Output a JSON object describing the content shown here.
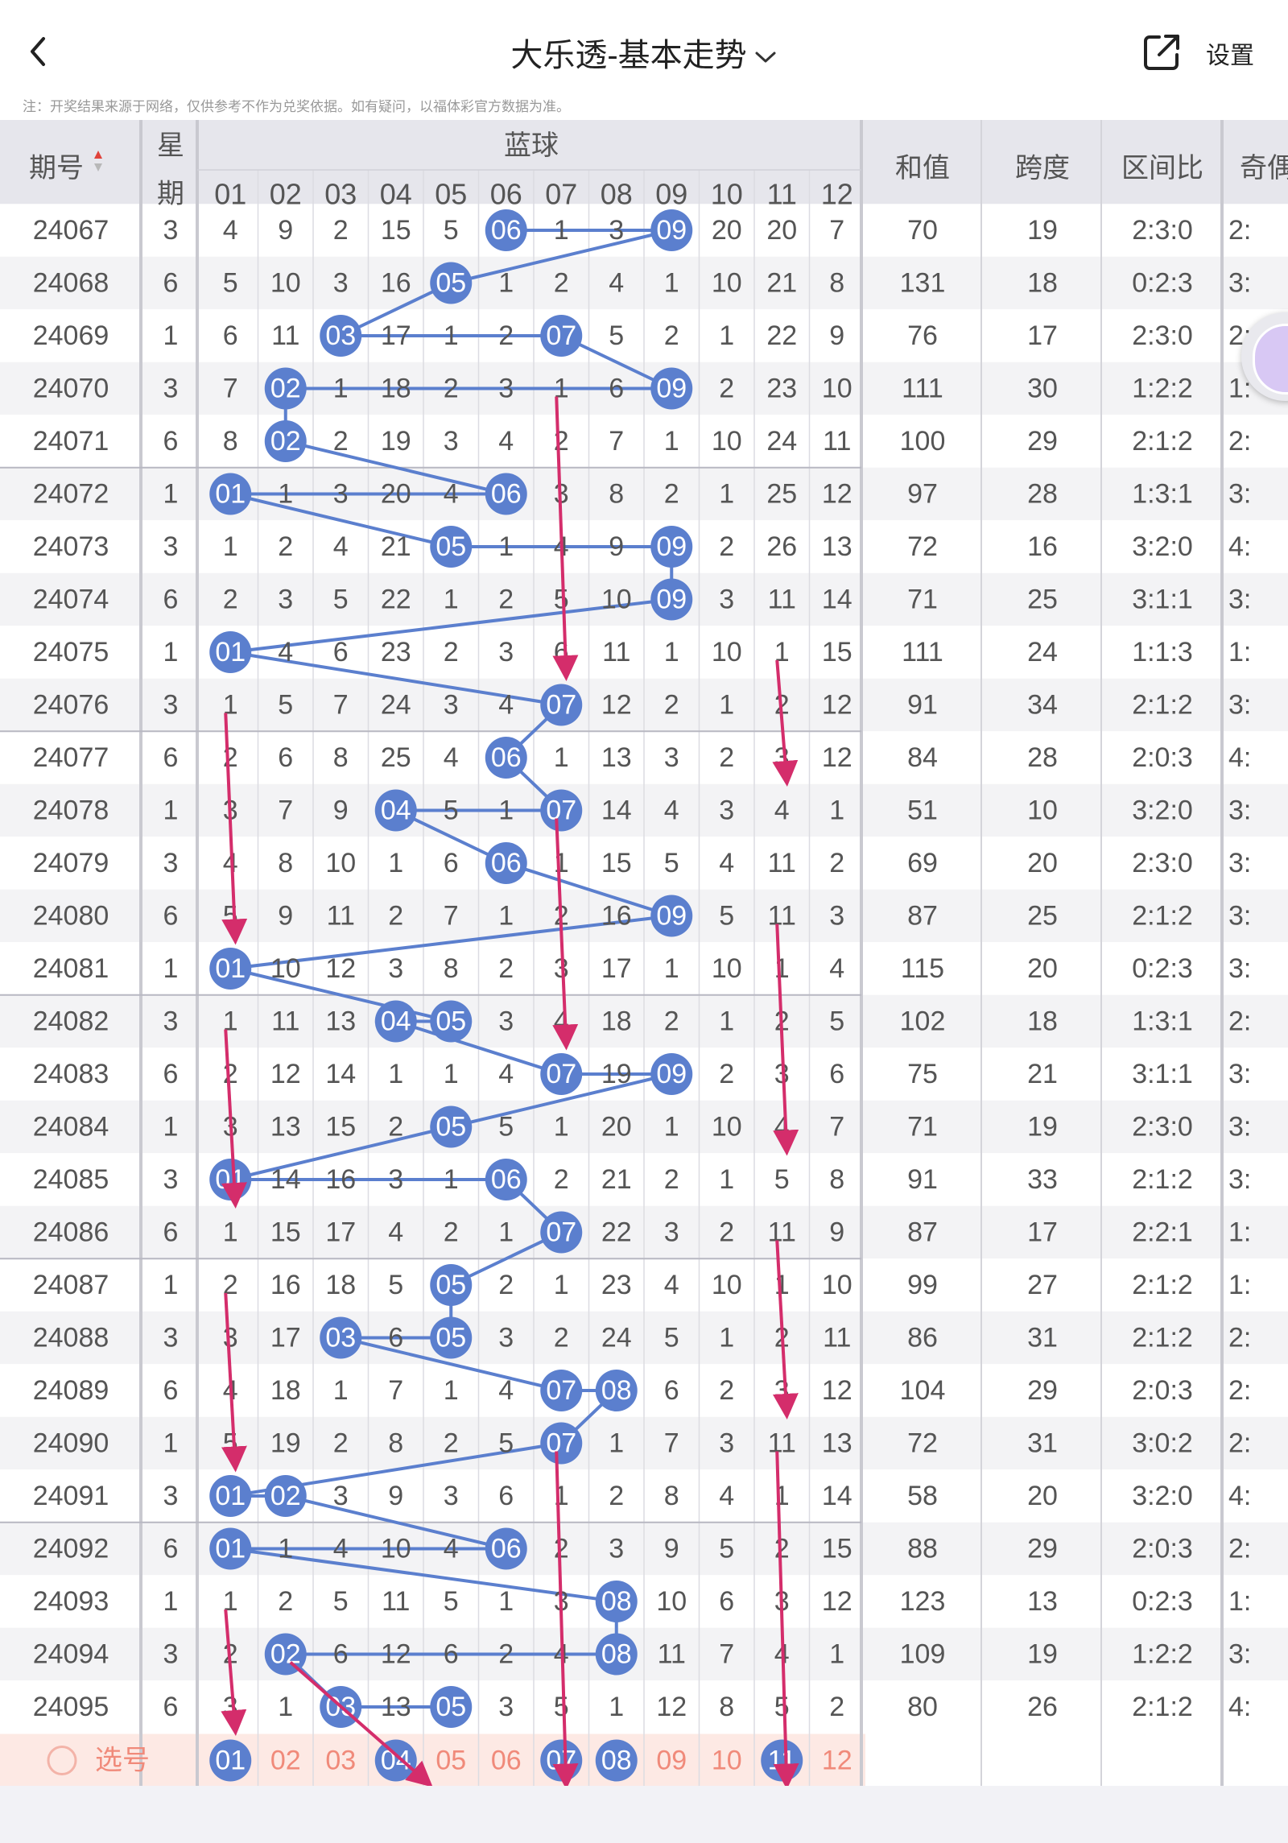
{
  "header": {
    "title": "大乐透-基本走势",
    "settings_label": "设置"
  },
  "notice": "注：开奖结果来源于网络，仅供参考不作为兑奖依据。如有疑问，以福体彩官方数据为准。",
  "table": {
    "col_issue": "期号",
    "col_week_1": "星",
    "col_week_2": "期",
    "group_blue": "蓝球",
    "blue_numbers": [
      "01",
      "02",
      "03",
      "04",
      "05",
      "06",
      "07",
      "08",
      "09",
      "10",
      "11",
      "12"
    ],
    "col_sum": "和值",
    "col_span": "跨度",
    "col_zone": "区间比",
    "col_odd": "奇偶",
    "rows": [
      {
        "issue": "24067",
        "week": "3",
        "cells": [
          "4",
          "9",
          "2",
          "15",
          "5",
          "06",
          "1",
          "3",
          "09",
          "20",
          "20",
          "7"
        ],
        "sum": "70",
        "span": "19",
        "zone": "2:3:0",
        "odd": "2:"
      },
      {
        "issue": "24068",
        "week": "6",
        "cells": [
          "5",
          "10",
          "3",
          "16",
          "05",
          "1",
          "2",
          "4",
          "1",
          "10",
          "21",
          "8"
        ],
        "sum": "131",
        "span": "18",
        "zone": "0:2:3",
        "odd": "3:"
      },
      {
        "issue": "24069",
        "week": "1",
        "cells": [
          "6",
          "11",
          "03",
          "17",
          "1",
          "2",
          "07",
          "5",
          "2",
          "1",
          "22",
          "9"
        ],
        "sum": "76",
        "span": "17",
        "zone": "2:3:0",
        "odd": "2:"
      },
      {
        "issue": "24070",
        "week": "3",
        "cells": [
          "7",
          "02",
          "1",
          "18",
          "2",
          "3",
          "1",
          "6",
          "09",
          "2",
          "23",
          "10"
        ],
        "sum": "111",
        "span": "30",
        "zone": "1:2:2",
        "odd": "1:"
      },
      {
        "issue": "24071",
        "week": "6",
        "cells": [
          "8",
          "02",
          "2",
          "19",
          "3",
          "4",
          "2",
          "7",
          "1",
          "10",
          "24",
          "11"
        ],
        "sum": "100",
        "span": "29",
        "zone": "2:1:2",
        "odd": "2:"
      },
      {
        "issue": "24072",
        "week": "1",
        "cells": [
          "01",
          "1",
          "3",
          "20",
          "4",
          "06",
          "3",
          "8",
          "2",
          "1",
          "25",
          "12"
        ],
        "sum": "97",
        "span": "28",
        "zone": "1:3:1",
        "odd": "3:"
      },
      {
        "issue": "24073",
        "week": "3",
        "cells": [
          "1",
          "2",
          "4",
          "21",
          "05",
          "1",
          "4",
          "9",
          "09",
          "2",
          "26",
          "13"
        ],
        "sum": "72",
        "span": "16",
        "zone": "3:2:0",
        "odd": "4:"
      },
      {
        "issue": "24074",
        "week": "6",
        "cells": [
          "2",
          "3",
          "5",
          "22",
          "1",
          "2",
          "5",
          "10",
          "09",
          "3",
          "11",
          "14"
        ],
        "sum": "71",
        "span": "25",
        "zone": "3:1:1",
        "odd": "3:"
      },
      {
        "issue": "24075",
        "week": "1",
        "cells": [
          "01",
          "4",
          "6",
          "23",
          "2",
          "3",
          "6",
          "11",
          "1",
          "10",
          "1",
          "15"
        ],
        "sum": "111",
        "span": "24",
        "zone": "1:1:3",
        "odd": "1:"
      },
      {
        "issue": "24076",
        "week": "3",
        "cells": [
          "1",
          "5",
          "7",
          "24",
          "3",
          "4",
          "07",
          "12",
          "2",
          "1",
          "2",
          "12"
        ],
        "sum": "91",
        "span": "34",
        "zone": "2:1:2",
        "odd": "3:"
      },
      {
        "issue": "24077",
        "week": "6",
        "cells": [
          "2",
          "6",
          "8",
          "25",
          "4",
          "06",
          "1",
          "13",
          "3",
          "2",
          "3",
          "12"
        ],
        "sum": "84",
        "span": "28",
        "zone": "2:0:3",
        "odd": "4:"
      },
      {
        "issue": "24078",
        "week": "1",
        "cells": [
          "3",
          "7",
          "9",
          "04",
          "5",
          "1",
          "07",
          "14",
          "4",
          "3",
          "4",
          "1"
        ],
        "sum": "51",
        "span": "10",
        "zone": "3:2:0",
        "odd": "3:"
      },
      {
        "issue": "24079",
        "week": "3",
        "cells": [
          "4",
          "8",
          "10",
          "1",
          "6",
          "06",
          "1",
          "15",
          "5",
          "4",
          "11",
          "2"
        ],
        "sum": "69",
        "span": "20",
        "zone": "2:3:0",
        "odd": "3:"
      },
      {
        "issue": "24080",
        "week": "6",
        "cells": [
          "5",
          "9",
          "11",
          "2",
          "7",
          "1",
          "2",
          "16",
          "09",
          "5",
          "11",
          "3"
        ],
        "sum": "87",
        "span": "25",
        "zone": "2:1:2",
        "odd": "3:"
      },
      {
        "issue": "24081",
        "week": "1",
        "cells": [
          "01",
          "10",
          "12",
          "3",
          "8",
          "2",
          "3",
          "17",
          "1",
          "10",
          "1",
          "4"
        ],
        "sum": "115",
        "span": "20",
        "zone": "0:2:3",
        "odd": "3:"
      },
      {
        "issue": "24082",
        "week": "3",
        "cells": [
          "1",
          "11",
          "13",
          "04",
          "05",
          "3",
          "4",
          "18",
          "2",
          "1",
          "2",
          "5"
        ],
        "sum": "102",
        "span": "18",
        "zone": "1:3:1",
        "odd": "2:"
      },
      {
        "issue": "24083",
        "week": "6",
        "cells": [
          "2",
          "12",
          "14",
          "1",
          "1",
          "4",
          "07",
          "19",
          "09",
          "2",
          "3",
          "6"
        ],
        "sum": "75",
        "span": "21",
        "zone": "3:1:1",
        "odd": "3:"
      },
      {
        "issue": "24084",
        "week": "1",
        "cells": [
          "3",
          "13",
          "15",
          "2",
          "05",
          "5",
          "1",
          "20",
          "1",
          "10",
          "4",
          "7"
        ],
        "sum": "71",
        "span": "19",
        "zone": "2:3:0",
        "odd": "3:"
      },
      {
        "issue": "24085",
        "week": "3",
        "cells": [
          "01",
          "14",
          "16",
          "3",
          "1",
          "06",
          "2",
          "21",
          "2",
          "1",
          "5",
          "8"
        ],
        "sum": "91",
        "span": "33",
        "zone": "2:1:2",
        "odd": "3:"
      },
      {
        "issue": "24086",
        "week": "6",
        "cells": [
          "1",
          "15",
          "17",
          "4",
          "2",
          "1",
          "07",
          "22",
          "3",
          "2",
          "11",
          "9"
        ],
        "sum": "87",
        "span": "17",
        "zone": "2:2:1",
        "odd": "1:"
      },
      {
        "issue": "24087",
        "week": "1",
        "cells": [
          "2",
          "16",
          "18",
          "5",
          "05",
          "2",
          "1",
          "23",
          "4",
          "10",
          "1",
          "10"
        ],
        "sum": "99",
        "span": "27",
        "zone": "2:1:2",
        "odd": "1:"
      },
      {
        "issue": "24088",
        "week": "3",
        "cells": [
          "3",
          "17",
          "03",
          "6",
          "05",
          "3",
          "2",
          "24",
          "5",
          "1",
          "2",
          "11"
        ],
        "sum": "86",
        "span": "31",
        "zone": "2:1:2",
        "odd": "2:"
      },
      {
        "issue": "24089",
        "week": "6",
        "cells": [
          "4",
          "18",
          "1",
          "7",
          "1",
          "4",
          "07",
          "08",
          "6",
          "2",
          "3",
          "12"
        ],
        "sum": "104",
        "span": "29",
        "zone": "2:0:3",
        "odd": "2:"
      },
      {
        "issue": "24090",
        "week": "1",
        "cells": [
          "5",
          "19",
          "2",
          "8",
          "2",
          "5",
          "07",
          "1",
          "7",
          "3",
          "11",
          "13"
        ],
        "sum": "72",
        "span": "31",
        "zone": "3:0:2",
        "odd": "2:"
      },
      {
        "issue": "24091",
        "week": "3",
        "cells": [
          "01",
          "02",
          "3",
          "9",
          "3",
          "6",
          "1",
          "2",
          "8",
          "4",
          "1",
          "14"
        ],
        "sum": "58",
        "span": "20",
        "zone": "3:2:0",
        "odd": "4:"
      },
      {
        "issue": "24092",
        "week": "6",
        "cells": [
          "01",
          "1",
          "4",
          "10",
          "4",
          "06",
          "2",
          "3",
          "9",
          "5",
          "2",
          "15"
        ],
        "sum": "88",
        "span": "29",
        "zone": "2:0:3",
        "odd": "2:"
      },
      {
        "issue": "24093",
        "week": "1",
        "cells": [
          "1",
          "2",
          "5",
          "11",
          "5",
          "1",
          "3",
          "08",
          "10",
          "6",
          "3",
          "12"
        ],
        "sum": "123",
        "span": "13",
        "zone": "0:2:3",
        "odd": "1:"
      },
      {
        "issue": "24094",
        "week": "3",
        "cells": [
          "2",
          "02",
          "6",
          "12",
          "6",
          "2",
          "4",
          "08",
          "11",
          "7",
          "4",
          "1"
        ],
        "sum": "109",
        "span": "19",
        "zone": "1:2:2",
        "odd": "3:"
      },
      {
        "issue": "24095",
        "week": "6",
        "cells": [
          "3",
          "1",
          "03",
          "13",
          "05",
          "3",
          "5",
          "1",
          "12",
          "8",
          "5",
          "2"
        ],
        "sum": "80",
        "span": "26",
        "zone": "2:1:2",
        "odd": "4:"
      }
    ],
    "select_label": "选号",
    "select_balls": [
      "01",
      "02",
      "03",
      "04",
      "05",
      "06",
      "07",
      "08",
      "09",
      "10",
      "11",
      "12"
    ],
    "selected": [
      "01",
      "04",
      "07",
      "08",
      "11"
    ]
  },
  "colors": {
    "ball": "#5b7fce",
    "line": "#5b7fce",
    "arrow": "#d42d6b",
    "header_bg": "#e6e6ec",
    "row_alt": "#f3f3f5",
    "select_row_bg": "#fde9e4",
    "select_text": "#f08a7a"
  },
  "annotations": {
    "arrow_color": "#d42d6b",
    "arrows": [
      {
        "col": "07",
        "from_issue": "24070",
        "to_issue": "24075"
      },
      {
        "col": "01",
        "from_issue": "24076",
        "to_issue": "24080"
      },
      {
        "col": "11",
        "from_issue": "24075",
        "to_issue": "24077"
      },
      {
        "col": "07",
        "from_issue": "24078",
        "to_issue": "24082"
      },
      {
        "col": "11",
        "from_issue": "24080",
        "to_issue": "24084"
      },
      {
        "col": "01",
        "from_issue": "24082",
        "to_issue": "24085"
      },
      {
        "col": "01",
        "from_issue": "24087",
        "to_issue": "24090"
      },
      {
        "col": "11",
        "from_issue": "24086",
        "to_issue": "24089"
      },
      {
        "col": "07",
        "from_issue": "24090",
        "to_issue": "select"
      },
      {
        "col": "11",
        "from_issue": "24090",
        "to_issue": "select"
      },
      {
        "col": "01",
        "from_issue": "24093",
        "to_issue": "24095"
      },
      {
        "col": "02-04",
        "from_issue": "24094",
        "to_issue": "select"
      }
    ]
  }
}
